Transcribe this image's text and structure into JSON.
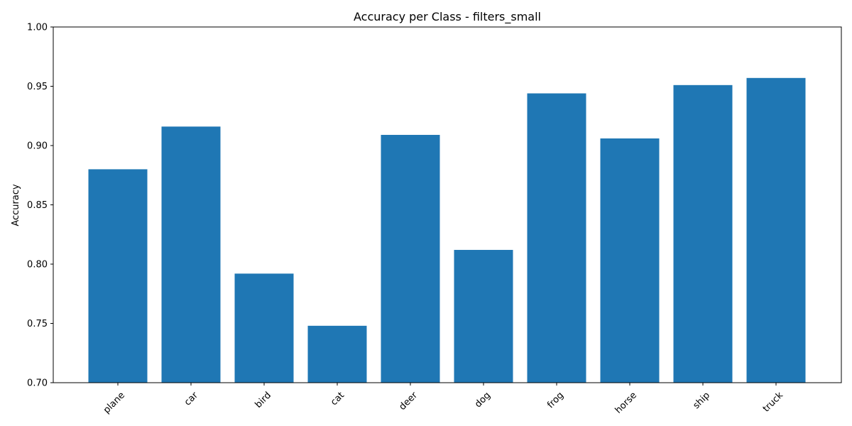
{
  "chart_data": {
    "type": "bar",
    "title": "Accuracy per Class - filters_small",
    "xlabel": "",
    "ylabel": "Accuracy",
    "categories": [
      "plane",
      "car",
      "bird",
      "cat",
      "deer",
      "dog",
      "frog",
      "horse",
      "ship",
      "truck"
    ],
    "values": [
      0.88,
      0.916,
      0.792,
      0.748,
      0.909,
      0.812,
      0.944,
      0.906,
      0.951,
      0.957
    ],
    "ylim": [
      0.7,
      1.0
    ],
    "yticks": [
      "0.70",
      "0.75",
      "0.80",
      "0.85",
      "0.90",
      "0.95",
      "1.00"
    ],
    "bar_color": "#1f77b4",
    "grid": false,
    "legend": "none"
  }
}
